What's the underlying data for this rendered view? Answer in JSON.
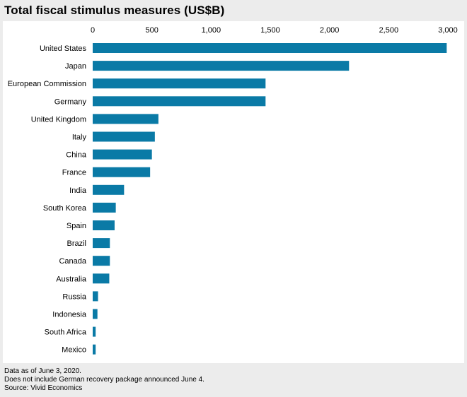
{
  "chart_data": {
    "type": "bar",
    "orientation": "horizontal",
    "title": "Total fiscal stimulus measures (US$B)",
    "categories": [
      "United States",
      "Japan",
      "European Commission",
      "Germany",
      "United Kingdom",
      "Italy",
      "China",
      "France",
      "India",
      "South Korea",
      "Spain",
      "Brazil",
      "Canada",
      "Australia",
      "Russia",
      "Indonesia",
      "South Africa",
      "Mexico"
    ],
    "values": [
      2990,
      2165,
      1460,
      1460,
      555,
      525,
      500,
      485,
      265,
      195,
      185,
      145,
      145,
      140,
      45,
      40,
      25,
      25
    ],
    "xlim": [
      0,
      3000
    ],
    "xticks": [
      0,
      500,
      1000,
      1500,
      2000,
      2500,
      3000
    ],
    "xtick_labels": [
      "0",
      "500",
      "1,000",
      "1,500",
      "2,000",
      "2,500",
      "3,000"
    ],
    "xaxis_position": "top",
    "bar_color": "#0a7aa6",
    "grid": false,
    "legend": "none"
  },
  "footnotes": {
    "line1": "Data as of June 3, 2020.",
    "line2": "Does not include German recovery package announced June 4.",
    "line3": "Source: Vivid Economics"
  }
}
